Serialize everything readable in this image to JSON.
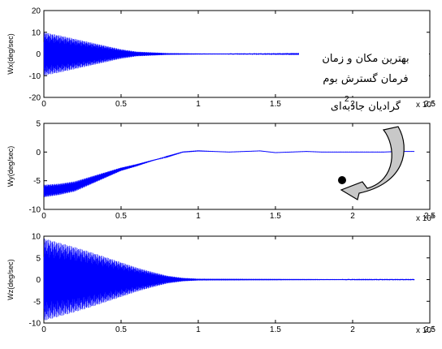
{
  "chart_data": [
    {
      "type": "line",
      "ylabel": "Wx(deg/sec)",
      "xlim": [
        0,
        25000
      ],
      "ylim": [
        -20,
        20
      ],
      "xticks": [
        0,
        5000,
        10000,
        15000,
        20000,
        25000
      ],
      "xtick_labels": [
        "0",
        "0.5",
        "1",
        "1.5",
        "2",
        "2.5"
      ],
      "yticks": [
        -20,
        -10,
        0,
        10,
        20
      ],
      "ytick_labels": [
        "-20",
        "-10",
        "0",
        "10",
        "20"
      ],
      "x_multiplier": "x 10",
      "x_multiplier_exp": "4",
      "color": "#0000ff",
      "series": [
        {
          "signal": "oscillation",
          "x": [
            0,
            1000,
            2000,
            3000,
            4000,
            5000,
            6000,
            8000,
            10000,
            15000,
            20000,
            24000
          ],
          "mean": [
            0,
            0,
            0,
            0,
            0,
            0,
            0,
            0,
            0,
            0,
            0,
            0
          ],
          "amplitude": [
            10,
            8.6,
            7,
            5.4,
            3.8,
            2.2,
            1.1,
            0.4,
            0.25,
            0.15,
            0.1,
            0.1
          ]
        }
      ]
    },
    {
      "type": "line",
      "ylabel": "Wy(deg/sec)",
      "xlim": [
        0,
        25000
      ],
      "ylim": [
        -10,
        5
      ],
      "xticks": [
        0,
        5000,
        10000,
        15000,
        20000,
        25000
      ],
      "xtick_labels": [
        "0",
        "0.5",
        "1",
        "1.5",
        "2",
        "2.5"
      ],
      "yticks": [
        -10,
        -5,
        0,
        5
      ],
      "ytick_labels": [
        "-10",
        "-5",
        "0",
        "5"
      ],
      "x_multiplier": "x 10",
      "x_multiplier_exp": "4",
      "color": "#0000ff",
      "series": [
        {
          "signal": "oscillation",
          "x": [
            0,
            1000,
            2000,
            3000,
            4000,
            5000,
            6000,
            7000,
            8000,
            9000,
            10000,
            11000,
            12000,
            13000,
            14000,
            15000,
            16000,
            17000,
            18000,
            19000,
            20000,
            21000,
            22000,
            23000,
            24000
          ],
          "mean": [
            -6.8,
            -6.5,
            -6,
            -5,
            -4,
            -3,
            -2.3,
            -1.5,
            -0.8,
            0,
            0.2,
            0.1,
            0,
            0.1,
            0.2,
            -0.1,
            0,
            0.1,
            0,
            0,
            0,
            0,
            0,
            0.1,
            0.1
          ],
          "amplitude": [
            1.1,
            1.0,
            0.9,
            0.7,
            0.5,
            0.3,
            0.2,
            0.1,
            0.05,
            0.03,
            0.03,
            0.02,
            0.02,
            0.02,
            0.02,
            0.02,
            0.02,
            0.02,
            0.02,
            0.02,
            0.02,
            0.02,
            0.02,
            0.02,
            0.02
          ]
        }
      ]
    },
    {
      "type": "line",
      "ylabel": "Wz(deg/sec)",
      "xlim": [
        0,
        25000
      ],
      "ylim": [
        -10,
        10
      ],
      "xticks": [
        0,
        5000,
        10000,
        15000,
        20000,
        25000
      ],
      "xtick_labels": [
        "0",
        "0.5",
        "1",
        "1.5",
        "2",
        "2.5"
      ],
      "yticks": [
        -10,
        -5,
        0,
        5,
        10
      ],
      "ytick_labels": [
        "-10",
        "-5",
        "0",
        "5",
        "10"
      ],
      "x_multiplier": "x 10",
      "x_multiplier_exp": "4",
      "color": "#0000ff",
      "series": [
        {
          "signal": "oscillation",
          "x": [
            0,
            1000,
            2000,
            3000,
            4000,
            5000,
            6000,
            7000,
            8000,
            9000,
            10000,
            15000,
            20000,
            24000
          ],
          "mean": [
            0,
            0,
            0,
            0,
            0,
            0,
            0,
            0,
            0,
            0,
            0,
            0,
            0,
            0
          ],
          "amplitude": [
            9.5,
            8.5,
            7.5,
            6.4,
            5.2,
            4,
            2.8,
            1.8,
            0.9,
            0.4,
            0.2,
            0.15,
            0.1,
            0.1
          ]
        }
      ]
    }
  ],
  "annotation": {
    "lines": [
      "بهترین مکان و زمان",
      "فرمان گسترش بوم",
      "گرادیان جاذبه‌ای"
    ],
    "stray_mark": "2"
  }
}
